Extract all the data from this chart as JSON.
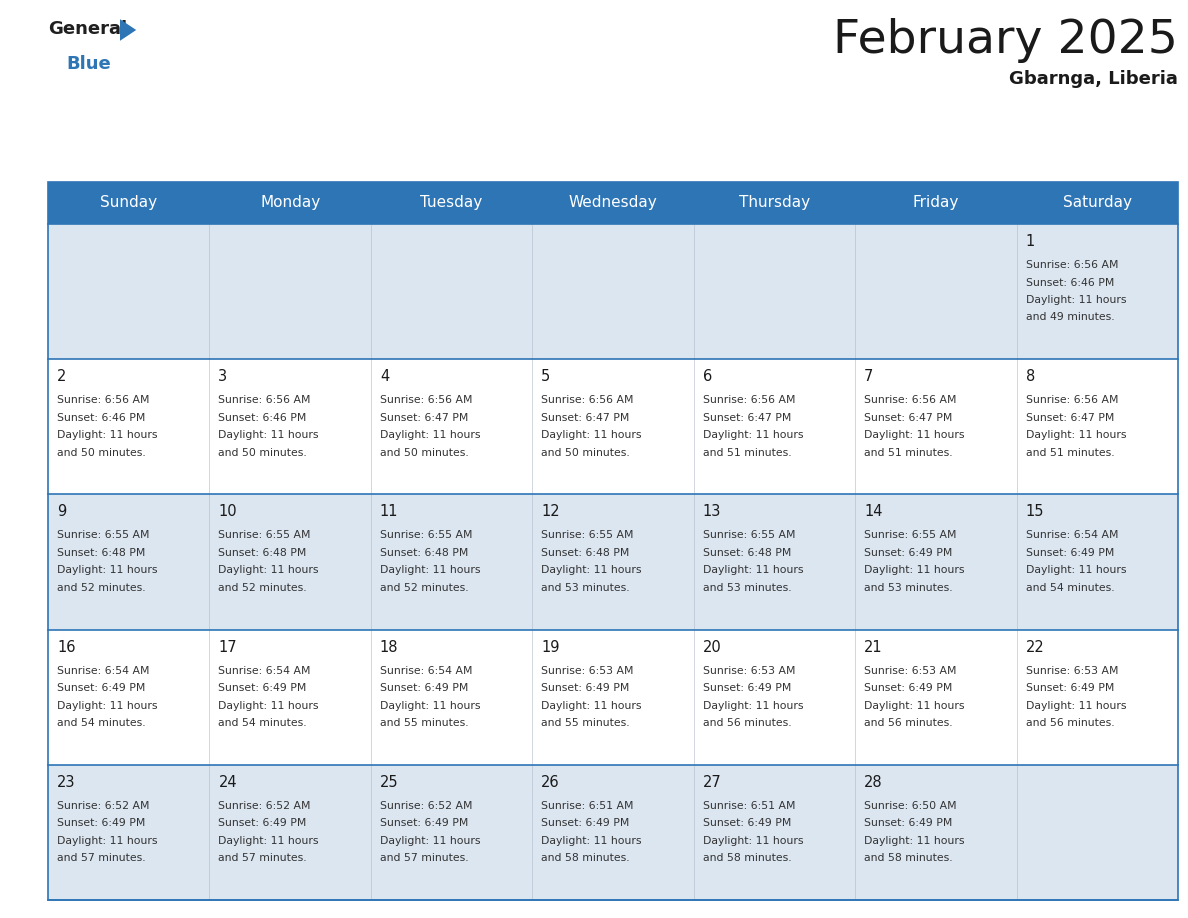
{
  "title": "February 2025",
  "subtitle": "Gbarnga, Liberia",
  "header_bg": "#2e75b6",
  "header_text_color": "#ffffff",
  "row_bg_colors": [
    "#dce6f1",
    "#ffffff",
    "#dce6f1",
    "#ffffff",
    "#dce6f1"
  ],
  "separator_color": "#2e75b6",
  "days_of_week": [
    "Sunday",
    "Monday",
    "Tuesday",
    "Wednesday",
    "Thursday",
    "Friday",
    "Saturday"
  ],
  "calendar": [
    [
      null,
      null,
      null,
      null,
      null,
      null,
      {
        "day": "1",
        "sunrise": "6:56 AM",
        "sunset": "6:46 PM",
        "daylight_h": "11 hours",
        "daylight_m": "and 49 minutes."
      }
    ],
    [
      {
        "day": "2",
        "sunrise": "6:56 AM",
        "sunset": "6:46 PM",
        "daylight_h": "11 hours",
        "daylight_m": "and 50 minutes."
      },
      {
        "day": "3",
        "sunrise": "6:56 AM",
        "sunset": "6:46 PM",
        "daylight_h": "11 hours",
        "daylight_m": "and 50 minutes."
      },
      {
        "day": "4",
        "sunrise": "6:56 AM",
        "sunset": "6:47 PM",
        "daylight_h": "11 hours",
        "daylight_m": "and 50 minutes."
      },
      {
        "day": "5",
        "sunrise": "6:56 AM",
        "sunset": "6:47 PM",
        "daylight_h": "11 hours",
        "daylight_m": "and 50 minutes."
      },
      {
        "day": "6",
        "sunrise": "6:56 AM",
        "sunset": "6:47 PM",
        "daylight_h": "11 hours",
        "daylight_m": "and 51 minutes."
      },
      {
        "day": "7",
        "sunrise": "6:56 AM",
        "sunset": "6:47 PM",
        "daylight_h": "11 hours",
        "daylight_m": "and 51 minutes."
      },
      {
        "day": "8",
        "sunrise": "6:56 AM",
        "sunset": "6:47 PM",
        "daylight_h": "11 hours",
        "daylight_m": "and 51 minutes."
      }
    ],
    [
      {
        "day": "9",
        "sunrise": "6:55 AM",
        "sunset": "6:48 PM",
        "daylight_h": "11 hours",
        "daylight_m": "and 52 minutes."
      },
      {
        "day": "10",
        "sunrise": "6:55 AM",
        "sunset": "6:48 PM",
        "daylight_h": "11 hours",
        "daylight_m": "and 52 minutes."
      },
      {
        "day": "11",
        "sunrise": "6:55 AM",
        "sunset": "6:48 PM",
        "daylight_h": "11 hours",
        "daylight_m": "and 52 minutes."
      },
      {
        "day": "12",
        "sunrise": "6:55 AM",
        "sunset": "6:48 PM",
        "daylight_h": "11 hours",
        "daylight_m": "and 53 minutes."
      },
      {
        "day": "13",
        "sunrise": "6:55 AM",
        "sunset": "6:48 PM",
        "daylight_h": "11 hours",
        "daylight_m": "and 53 minutes."
      },
      {
        "day": "14",
        "sunrise": "6:55 AM",
        "sunset": "6:49 PM",
        "daylight_h": "11 hours",
        "daylight_m": "and 53 minutes."
      },
      {
        "day": "15",
        "sunrise": "6:54 AM",
        "sunset": "6:49 PM",
        "daylight_h": "11 hours",
        "daylight_m": "and 54 minutes."
      }
    ],
    [
      {
        "day": "16",
        "sunrise": "6:54 AM",
        "sunset": "6:49 PM",
        "daylight_h": "11 hours",
        "daylight_m": "and 54 minutes."
      },
      {
        "day": "17",
        "sunrise": "6:54 AM",
        "sunset": "6:49 PM",
        "daylight_h": "11 hours",
        "daylight_m": "and 54 minutes."
      },
      {
        "day": "18",
        "sunrise": "6:54 AM",
        "sunset": "6:49 PM",
        "daylight_h": "11 hours",
        "daylight_m": "and 55 minutes."
      },
      {
        "day": "19",
        "sunrise": "6:53 AM",
        "sunset": "6:49 PM",
        "daylight_h": "11 hours",
        "daylight_m": "and 55 minutes."
      },
      {
        "day": "20",
        "sunrise": "6:53 AM",
        "sunset": "6:49 PM",
        "daylight_h": "11 hours",
        "daylight_m": "and 56 minutes."
      },
      {
        "day": "21",
        "sunrise": "6:53 AM",
        "sunset": "6:49 PM",
        "daylight_h": "11 hours",
        "daylight_m": "and 56 minutes."
      },
      {
        "day": "22",
        "sunrise": "6:53 AM",
        "sunset": "6:49 PM",
        "daylight_h": "11 hours",
        "daylight_m": "and 56 minutes."
      }
    ],
    [
      {
        "day": "23",
        "sunrise": "6:52 AM",
        "sunset": "6:49 PM",
        "daylight_h": "11 hours",
        "daylight_m": "and 57 minutes."
      },
      {
        "day": "24",
        "sunrise": "6:52 AM",
        "sunset": "6:49 PM",
        "daylight_h": "11 hours",
        "daylight_m": "and 57 minutes."
      },
      {
        "day": "25",
        "sunrise": "6:52 AM",
        "sunset": "6:49 PM",
        "daylight_h": "11 hours",
        "daylight_m": "and 57 minutes."
      },
      {
        "day": "26",
        "sunrise": "6:51 AM",
        "sunset": "6:49 PM",
        "daylight_h": "11 hours",
        "daylight_m": "and 58 minutes."
      },
      {
        "day": "27",
        "sunrise": "6:51 AM",
        "sunset": "6:49 PM",
        "daylight_h": "11 hours",
        "daylight_m": "and 58 minutes."
      },
      {
        "day": "28",
        "sunrise": "6:50 AM",
        "sunset": "6:49 PM",
        "daylight_h": "11 hours",
        "daylight_m": "and 58 minutes."
      },
      null
    ]
  ],
  "figwidth": 11.88,
  "figheight": 9.18,
  "dpi": 100
}
